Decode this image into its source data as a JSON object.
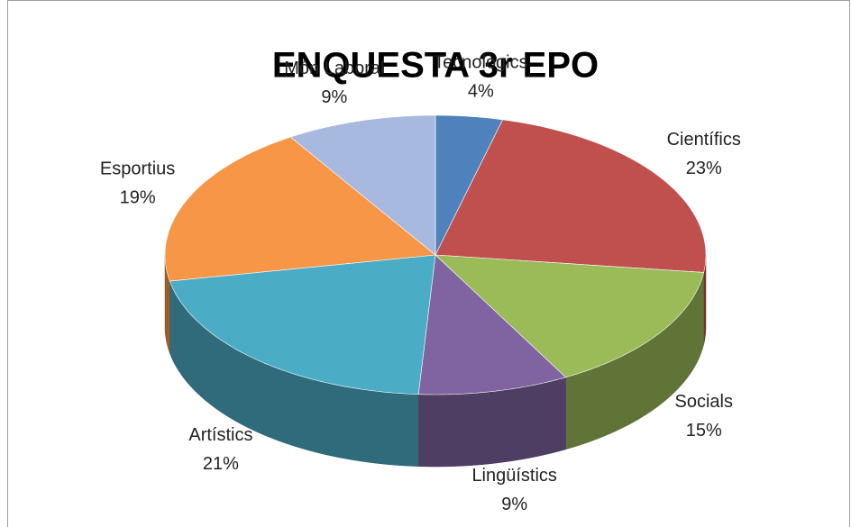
{
  "chart_data": {
    "type": "pie",
    "title": "ENQUESTA 3r EPO",
    "categories": [
      "Tecnològics",
      "Científics",
      "Socials",
      "Lingüístics",
      "Artístics",
      "Esportius",
      "Món Laboral"
    ],
    "values": [
      4,
      23,
      15,
      9,
      21,
      19,
      9
    ],
    "value_labels": [
      "4%",
      "23%",
      "15%",
      "9%",
      "21%",
      "19%",
      "9%"
    ],
    "colors": [
      "#4f81bd",
      "#c0504d",
      "#9bbb59",
      "#8064a2",
      "#4bacc6",
      "#f79646",
      "#a7b9de"
    ]
  }
}
